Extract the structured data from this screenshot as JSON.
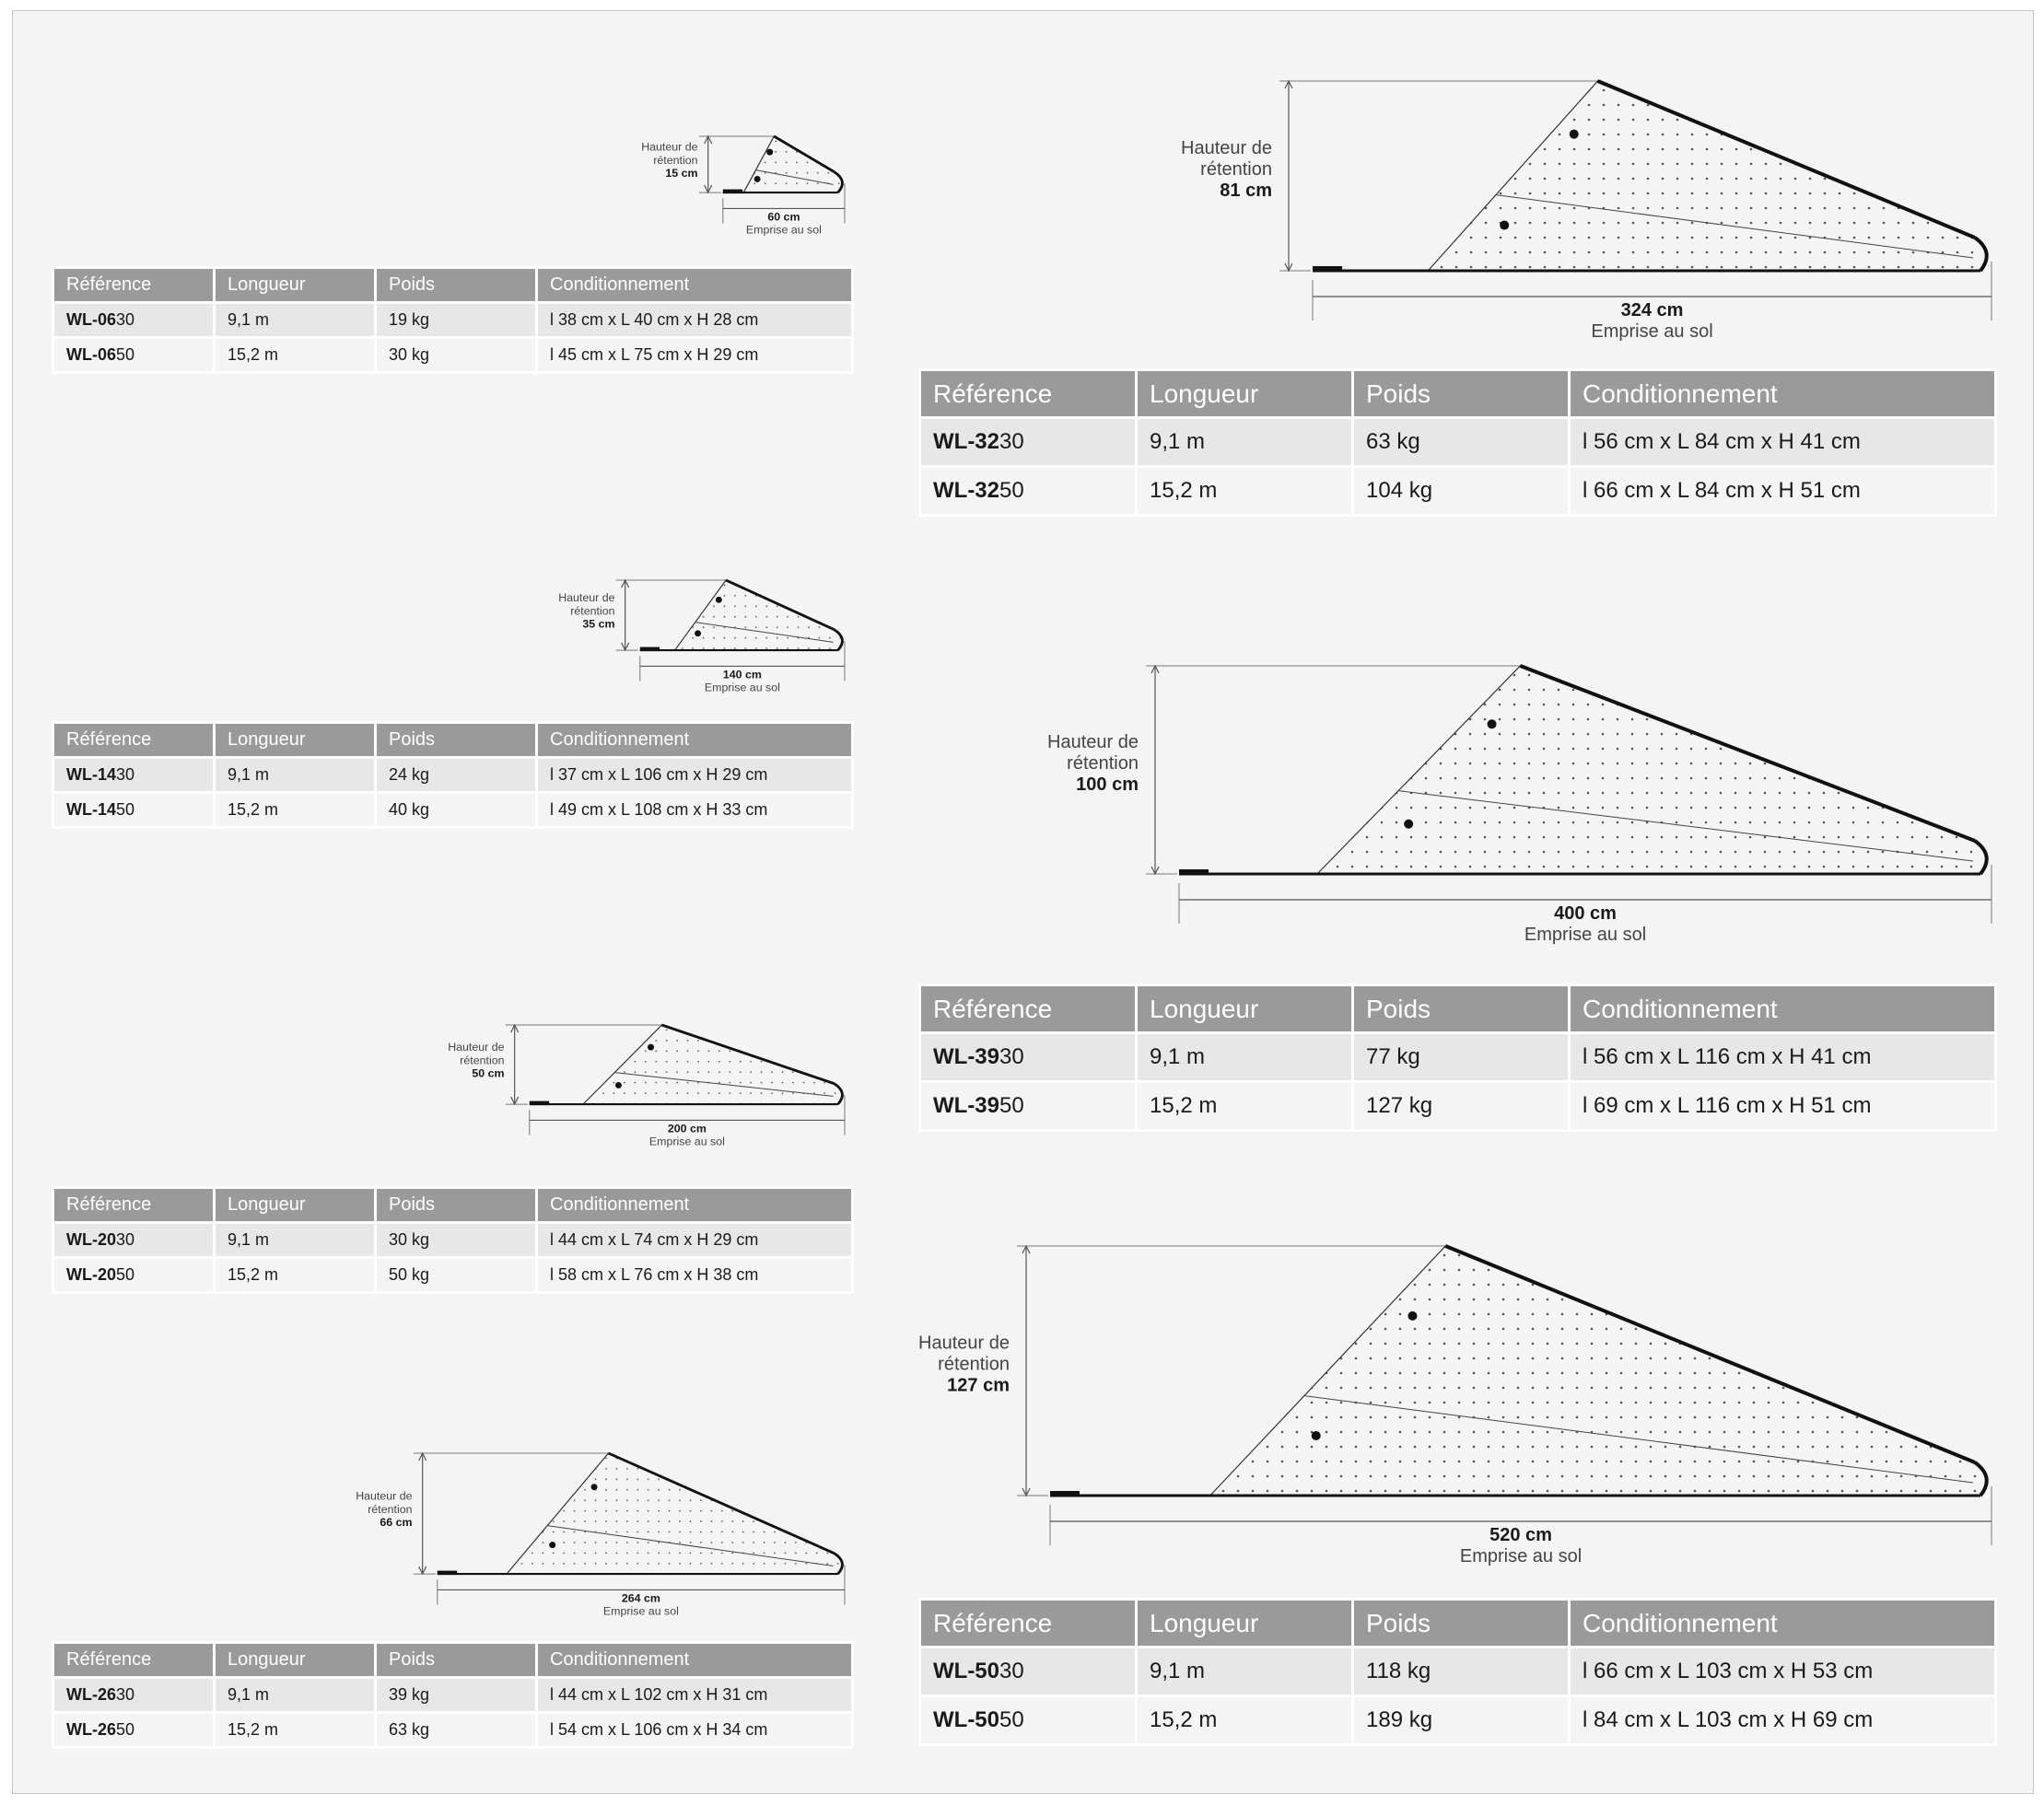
{
  "colors": {
    "frame": "#f4f4f4",
    "header": "#9a9a9a",
    "row_alt": "#e7e7e7",
    "outline": "#1a1a1a"
  },
  "headers": {
    "reference": "Référence",
    "length": "Longueur",
    "weight": "Poids",
    "packaging": "Conditionnement"
  },
  "labels": {
    "height_line1": "Hauteur de",
    "height_line2": "rétention",
    "footprint": "Emprise au sol"
  },
  "models": [
    {
      "id": "wl06",
      "height": "15 cm",
      "footprint_value": "60 cm",
      "rows": [
        {
          "ref_bold": "WL-06",
          "ref_rest": "30",
          "length": "9,1 m",
          "weight": "19 kg",
          "packaging": "l 38 cm x L 40 cm x H 28 cm"
        },
        {
          "ref_bold": "WL-06",
          "ref_rest": "50",
          "length": "15,2 m",
          "weight": "30 kg",
          "packaging": "l 45 cm x L 75 cm x H 29 cm"
        }
      ]
    },
    {
      "id": "wl14",
      "height": "35 cm",
      "footprint_value": "140 cm",
      "rows": [
        {
          "ref_bold": "WL-14",
          "ref_rest": "30",
          "length": "9,1 m",
          "weight": "24 kg",
          "packaging": "l 37 cm x L 106 cm x H 29 cm"
        },
        {
          "ref_bold": "WL-14",
          "ref_rest": "50",
          "length": "15,2 m",
          "weight": "40 kg",
          "packaging": "l 49 cm x L 108 cm x H 33 cm"
        }
      ]
    },
    {
      "id": "wl20",
      "height": "50 cm",
      "footprint_value": "200 cm",
      "rows": [
        {
          "ref_bold": "WL-20",
          "ref_rest": "30",
          "length": "9,1 m",
          "weight": "30 kg",
          "packaging": "l 44 cm x L 74 cm x H 29 cm"
        },
        {
          "ref_bold": "WL-20",
          "ref_rest": "50",
          "length": "15,2 m",
          "weight": "50 kg",
          "packaging": "l 58 cm x L 76 cm x H 38 cm"
        }
      ]
    },
    {
      "id": "wl26",
      "height": "66 cm",
      "footprint_value": "264 cm",
      "rows": [
        {
          "ref_bold": "WL-26",
          "ref_rest": "30",
          "length": "9,1 m",
          "weight": "39 kg",
          "packaging": "l 44 cm x L 102 cm x H 31 cm"
        },
        {
          "ref_bold": "WL-26",
          "ref_rest": "50",
          "length": "15,2 m",
          "weight": "63 kg",
          "packaging": "l 54 cm x L 106 cm x H 34 cm"
        }
      ]
    },
    {
      "id": "wl32",
      "height": "81 cm",
      "footprint_value": "324 cm",
      "rows": [
        {
          "ref_bold": "WL-32",
          "ref_rest": "30",
          "length": "9,1 m",
          "weight": "63 kg",
          "packaging": "l 56 cm x L 84 cm x H 41 cm"
        },
        {
          "ref_bold": "WL-32",
          "ref_rest": "50",
          "length": "15,2 m",
          "weight": "104 kg",
          "packaging": "l 66 cm x L 84 cm x H 51 cm"
        }
      ]
    },
    {
      "id": "wl39",
      "height": "100 cm",
      "footprint_value": "400 cm",
      "rows": [
        {
          "ref_bold": "WL-39",
          "ref_rest": "30",
          "length": "9,1 m",
          "weight": "77 kg",
          "packaging": "l 56 cm x L 116 cm x H 41 cm"
        },
        {
          "ref_bold": "WL-39",
          "ref_rest": "50",
          "length": "15,2 m",
          "weight": "127 kg",
          "packaging": "l 69 cm x L 116 cm x H 51 cm"
        }
      ]
    },
    {
      "id": "wl50",
      "height": "127 cm",
      "footprint_value": "520 cm",
      "rows": [
        {
          "ref_bold": "WL-50",
          "ref_rest": "30",
          "length": "9,1 m",
          "weight": "118 kg",
          "packaging": "l 66 cm x L 103 cm x H 53 cm"
        },
        {
          "ref_bold": "WL-50",
          "ref_rest": "50",
          "length": "15,2 m",
          "weight": "189 kg",
          "packaging": "l 84 cm x L 103 cm x H 69 cm"
        }
      ]
    }
  ]
}
